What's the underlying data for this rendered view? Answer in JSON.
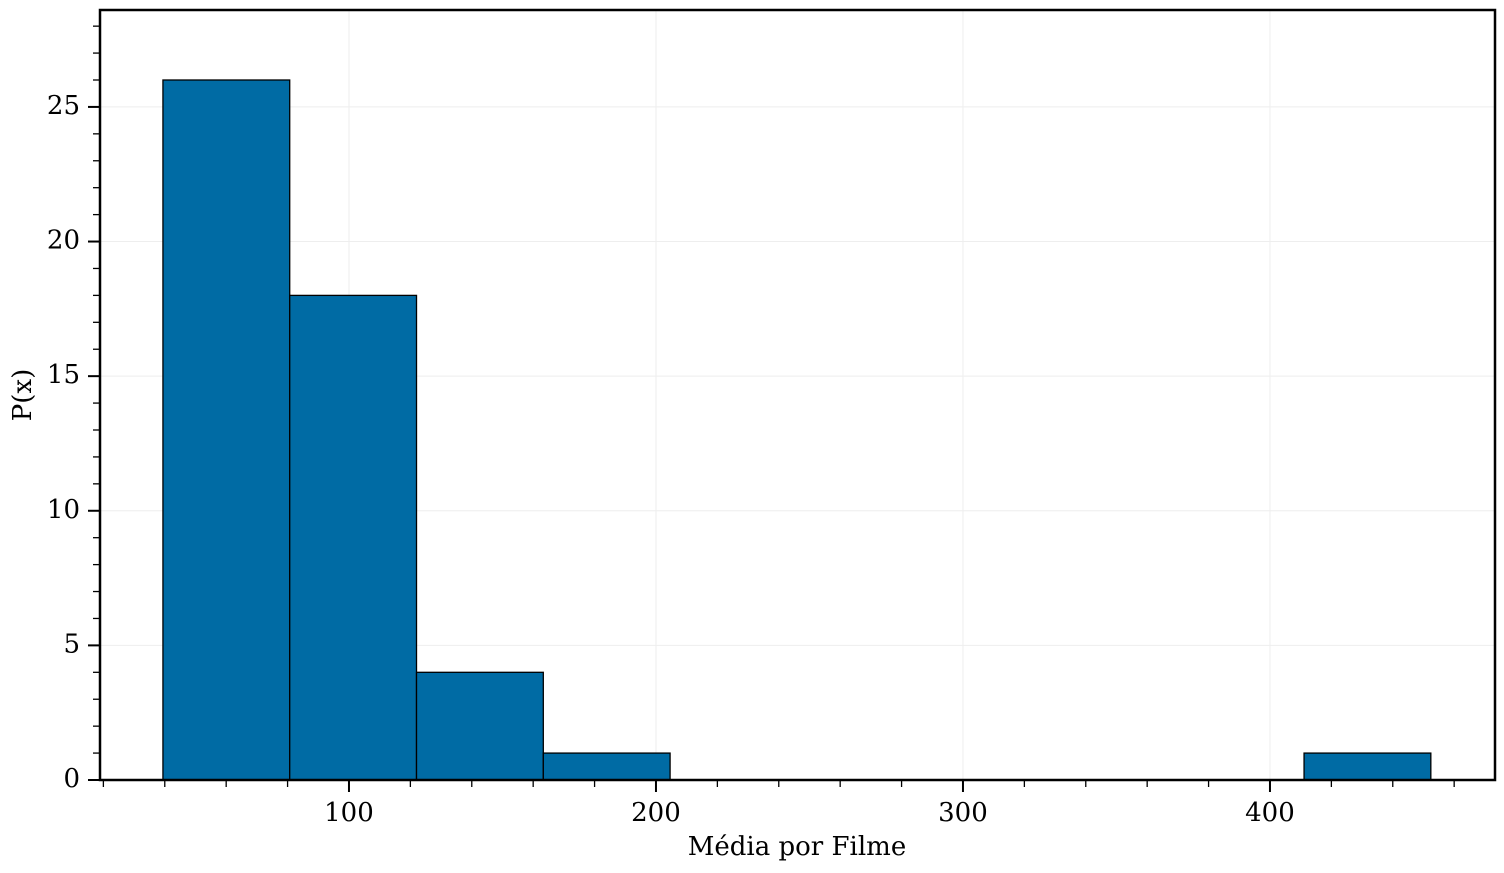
{
  "chart_data": {
    "type": "histogram",
    "xlabel": "Média por Filme",
    "ylabel": "P(x)",
    "bins": [
      39.4,
      80.7,
      122.0,
      163.3,
      204.6,
      245.9,
      287.2,
      328.5,
      369.8,
      411.1,
      452.4
    ],
    "values": [
      26,
      18,
      4,
      1,
      0,
      0,
      0,
      0,
      0,
      1
    ],
    "color": "#006ba4",
    "edgecolor": "#000000",
    "xlim": [
      18.9,
      473.3
    ],
    "ylim": [
      0,
      28.6
    ],
    "xticks": [
      100,
      200,
      300,
      400
    ],
    "yticks": [
      0,
      5,
      10,
      15,
      20,
      25
    ],
    "xminorticks": [
      20,
      40,
      60,
      80,
      120,
      140,
      160,
      180,
      220,
      240,
      260,
      280,
      320,
      340,
      360,
      380,
      420,
      440,
      460
    ],
    "yminorticks": [
      1,
      2,
      3,
      4,
      6,
      7,
      8,
      9,
      11,
      12,
      13,
      14,
      16,
      17,
      18,
      19,
      21,
      22,
      23,
      24,
      26,
      27,
      28
    ],
    "grid": true
  }
}
